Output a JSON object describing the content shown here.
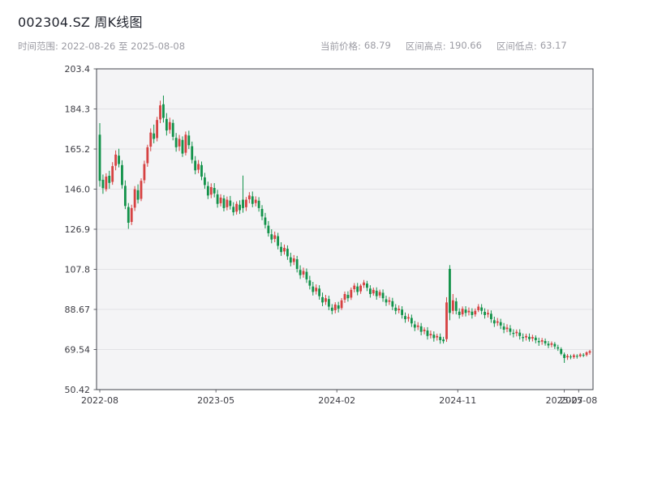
{
  "header": {
    "title": "002304.SZ 周K线图",
    "subtitle": "时间范围: 2022-08-26 至 2025-08-08",
    "stats": [
      {
        "label": "当前价格:",
        "value": "68.79"
      },
      {
        "label": "区间高点:",
        "value": "190.66"
      },
      {
        "label": "区间低点:",
        "value": "63.17"
      }
    ]
  },
  "chart_data": {
    "type": "candlestick",
    "symbol": "002304.SZ",
    "freq": "weekly",
    "start_date": "2022-08-26",
    "end_date": "2025-08-08",
    "current_price": 68.79,
    "range_high": 190.66,
    "range_low": 63.17,
    "ylim": [
      50.42,
      203.4
    ],
    "grid": "horizontal",
    "colors": {
      "up": "#d64242",
      "down": "#12924a",
      "plot_bg": "#f4f4f6",
      "grid": "#e2e2e6",
      "border": "#42454c"
    },
    "yticks": [
      {
        "value": 203.4,
        "label": "203.4"
      },
      {
        "value": 184.2775,
        "label": "184.3"
      },
      {
        "value": 165.155,
        "label": "165.2"
      },
      {
        "value": 146.0325,
        "label": "146.0"
      },
      {
        "value": 126.91,
        "label": "126.9"
      },
      {
        "value": 107.7875,
        "label": "107.8"
      },
      {
        "value": 88.665,
        "label": "88.67"
      },
      {
        "value": 69.5425,
        "label": "69.54"
      },
      {
        "value": 50.42,
        "label": "50.42"
      }
    ],
    "xticks": [
      {
        "week": 0,
        "label": "2022-08"
      },
      {
        "week": 36.5,
        "label": "2023-05"
      },
      {
        "week": 74.5,
        "label": "2024-02"
      },
      {
        "week": 112.5,
        "label": "2024-11"
      },
      {
        "week": 146,
        "label": "2025-07"
      },
      {
        "week": 150.5,
        "label": "2025-08"
      }
    ],
    "candles_format": [
      "open",
      "high",
      "low",
      "close"
    ],
    "candles": [
      [
        172.0,
        177.5,
        147.2,
        150.0
      ],
      [
        150.5,
        153.0,
        143.8,
        146.5
      ],
      [
        146.0,
        153.6,
        144.9,
        152.0
      ],
      [
        152.4,
        154.8,
        146.2,
        149.0
      ],
      [
        149.5,
        158.9,
        148.1,
        157.0
      ],
      [
        157.2,
        164.5,
        155.0,
        162.5
      ],
      [
        162.0,
        165.3,
        156.4,
        158.0
      ],
      [
        157.5,
        159.8,
        146.3,
        148.0
      ],
      [
        147.6,
        150.2,
        136.5,
        138.0
      ],
      [
        137.5,
        139.4,
        127.1,
        130.0
      ],
      [
        130.4,
        138.6,
        128.9,
        137.0
      ],
      [
        137.2,
        147.5,
        135.6,
        146.0
      ],
      [
        145.5,
        148.3,
        139.2,
        141.0
      ],
      [
        141.4,
        151.2,
        140.3,
        150.0
      ],
      [
        150.3,
        159.6,
        148.8,
        158.0
      ],
      [
        158.4,
        167.2,
        156.7,
        166.0
      ],
      [
        166.3,
        175.0,
        164.1,
        173.0
      ],
      [
        172.6,
        176.8,
        167.9,
        170.0
      ],
      [
        170.4,
        180.5,
        168.8,
        179.0
      ],
      [
        179.3,
        188.2,
        177.5,
        186.0
      ],
      [
        186.5,
        190.66,
        177.8,
        180.0
      ],
      [
        179.5,
        182.3,
        171.6,
        174.0
      ],
      [
        174.3,
        180.1,
        172.5,
        178.0
      ],
      [
        177.6,
        179.2,
        169.3,
        171.0
      ],
      [
        170.5,
        172.8,
        163.9,
        166.0
      ],
      [
        166.4,
        171.9,
        164.2,
        170.0
      ],
      [
        169.5,
        171.2,
        161.4,
        163.0
      ],
      [
        163.4,
        173.5,
        162.1,
        172.0
      ],
      [
        171.6,
        173.9,
        165.2,
        167.0
      ],
      [
        166.5,
        168.7,
        158.3,
        160.0
      ],
      [
        159.6,
        161.8,
        153.1,
        155.0
      ],
      [
        155.3,
        159.9,
        153.6,
        158.0
      ],
      [
        157.5,
        159.2,
        150.3,
        152.0
      ],
      [
        151.6,
        153.8,
        146.2,
        148.0
      ],
      [
        147.5,
        149.6,
        141.3,
        143.0
      ],
      [
        143.4,
        148.8,
        141.7,
        147.0
      ],
      [
        146.6,
        148.9,
        142.1,
        144.0
      ],
      [
        143.5,
        145.7,
        137.2,
        139.0
      ],
      [
        139.3,
        143.6,
        137.8,
        142.0
      ],
      [
        141.6,
        143.2,
        135.4,
        137.0
      ],
      [
        137.4,
        142.5,
        135.9,
        141.0
      ],
      [
        140.6,
        142.8,
        136.3,
        138.0
      ],
      [
        137.6,
        139.8,
        133.4,
        135.0
      ],
      [
        135.3,
        140.2,
        133.9,
        139.0
      ],
      [
        138.6,
        140.7,
        134.2,
        136.0
      ],
      [
        141.0,
        152.5,
        134.8,
        137.0
      ],
      [
        137.4,
        142.3,
        135.6,
        141.0
      ],
      [
        141.2,
        144.6,
        139.3,
        143.0
      ],
      [
        142.6,
        144.9,
        137.4,
        139.0
      ],
      [
        139.4,
        142.6,
        137.8,
        141.0
      ],
      [
        140.5,
        142.2,
        135.3,
        137.0
      ],
      [
        136.6,
        138.4,
        131.2,
        133.0
      ],
      [
        132.5,
        134.7,
        127.3,
        129.0
      ],
      [
        128.6,
        130.8,
        123.4,
        125.0
      ],
      [
        124.5,
        126.9,
        120.2,
        122.0
      ],
      [
        122.3,
        125.8,
        120.7,
        124.0
      ],
      [
        123.6,
        125.2,
        117.3,
        119.0
      ],
      [
        118.5,
        120.7,
        114.2,
        116.0
      ],
      [
        116.3,
        119.6,
        114.8,
        118.0
      ],
      [
        117.6,
        119.2,
        112.3,
        114.0
      ],
      [
        113.5,
        115.7,
        109.2,
        111.0
      ],
      [
        111.3,
        114.6,
        109.8,
        113.0
      ],
      [
        112.6,
        114.2,
        106.3,
        108.0
      ],
      [
        107.5,
        109.7,
        103.2,
        105.0
      ],
      [
        105.3,
        108.6,
        103.8,
        107.0
      ],
      [
        106.6,
        108.2,
        101.3,
        103.0
      ],
      [
        102.5,
        104.7,
        98.2,
        100.0
      ],
      [
        99.6,
        101.8,
        95.3,
        97.0
      ],
      [
        97.3,
        100.6,
        95.8,
        99.0
      ],
      [
        98.6,
        100.2,
        93.3,
        95.0
      ],
      [
        94.5,
        96.7,
        90.2,
        92.0
      ],
      [
        92.3,
        95.6,
        90.8,
        94.0
      ],
      [
        93.6,
        95.2,
        88.3,
        90.0
      ],
      [
        89.5,
        91.2,
        86.3,
        88.0
      ],
      [
        88.3,
        92.1,
        86.8,
        91.0
      ],
      [
        90.6,
        92.3,
        87.2,
        89.0
      ],
      [
        89.3,
        94.1,
        88.4,
        93.0
      ],
      [
        93.3,
        97.2,
        91.8,
        96.0
      ],
      [
        95.6,
        97.3,
        92.4,
        94.0
      ],
      [
        94.3,
        99.1,
        93.2,
        98.0
      ],
      [
        98.3,
        101.2,
        96.8,
        100.0
      ],
      [
        99.6,
        101.3,
        95.4,
        97.0
      ],
      [
        97.3,
        100.8,
        96.1,
        100.0
      ],
      [
        100.2,
        102.7,
        98.9,
        101.5
      ],
      [
        101.0,
        102.3,
        97.4,
        99.0
      ],
      [
        98.6,
        100.2,
        94.3,
        96.0
      ],
      [
        96.3,
        99.1,
        95.2,
        98.0
      ],
      [
        97.6,
        99.2,
        93.3,
        95.0
      ],
      [
        95.3,
        98.1,
        94.2,
        97.0
      ],
      [
        96.6,
        98.2,
        92.3,
        94.0
      ],
      [
        93.5,
        95.2,
        90.3,
        92.0
      ],
      [
        92.3,
        94.6,
        90.8,
        93.0
      ],
      [
        92.6,
        94.2,
        88.3,
        90.0
      ],
      [
        89.5,
        91.2,
        86.3,
        88.0
      ],
      [
        88.3,
        90.6,
        86.8,
        89.0
      ],
      [
        88.6,
        90.2,
        84.3,
        86.0
      ],
      [
        85.5,
        87.2,
        82.3,
        84.0
      ],
      [
        84.3,
        86.6,
        82.8,
        85.0
      ],
      [
        84.6,
        86.2,
        80.3,
        82.0
      ],
      [
        81.5,
        83.2,
        78.3,
        80.0
      ],
      [
        80.3,
        82.6,
        78.8,
        81.0
      ],
      [
        80.6,
        82.2,
        76.3,
        78.0
      ],
      [
        78.3,
        80.1,
        76.8,
        79.0
      ],
      [
        78.6,
        80.2,
        74.3,
        76.0
      ],
      [
        76.3,
        78.6,
        74.8,
        77.0
      ],
      [
        76.6,
        78.2,
        73.3,
        75.0
      ],
      [
        75.3,
        77.1,
        73.8,
        76.0
      ],
      [
        75.6,
        77.2,
        72.3,
        74.0
      ],
      [
        74.3,
        75.6,
        72.4,
        73.5
      ],
      [
        74.5,
        94.5,
        73.2,
        92.0
      ],
      [
        108.0,
        109.8,
        83.5,
        87.0
      ],
      [
        88.0,
        96.0,
        86.4,
        93.0
      ],
      [
        92.5,
        94.2,
        86.3,
        88.0
      ],
      [
        87.6,
        89.2,
        84.3,
        86.0
      ],
      [
        86.3,
        90.1,
        85.2,
        89.0
      ],
      [
        88.6,
        90.2,
        85.3,
        87.0
      ],
      [
        87.3,
        89.6,
        85.8,
        88.0
      ],
      [
        87.6,
        89.2,
        84.3,
        86.0
      ],
      [
        86.3,
        89.1,
        85.2,
        88.0
      ],
      [
        88.3,
        91.2,
        87.4,
        90.0
      ],
      [
        89.6,
        91.2,
        86.3,
        88.0
      ],
      [
        87.5,
        89.2,
        84.3,
        86.0
      ],
      [
        86.3,
        88.6,
        84.8,
        87.0
      ],
      [
        86.6,
        88.2,
        82.3,
        84.0
      ],
      [
        83.5,
        85.2,
        80.3,
        82.0
      ],
      [
        82.3,
        84.6,
        80.8,
        83.0
      ],
      [
        82.6,
        84.2,
        79.3,
        81.0
      ],
      [
        80.5,
        82.2,
        77.3,
        79.0
      ],
      [
        79.3,
        81.6,
        77.8,
        80.0
      ],
      [
        79.6,
        81.2,
        76.3,
        78.0
      ],
      [
        77.5,
        79.2,
        75.3,
        77.0
      ],
      [
        77.3,
        79.1,
        75.8,
        78.0
      ],
      [
        77.6,
        79.2,
        74.3,
        76.0
      ],
      [
        75.5,
        77.2,
        73.3,
        75.0
      ],
      [
        75.3,
        77.1,
        73.8,
        76.0
      ],
      [
        75.6,
        77.2,
        73.3,
        74.5
      ],
      [
        74.8,
        76.6,
        73.4,
        75.5
      ],
      [
        75.2,
        76.3,
        72.5,
        74.0
      ],
      [
        73.6,
        75.2,
        71.3,
        73.0
      ],
      [
        73.3,
        75.1,
        71.8,
        74.0
      ],
      [
        73.6,
        74.8,
        71.4,
        72.5
      ],
      [
        72.3,
        73.6,
        70.2,
        71.5
      ],
      [
        71.8,
        73.4,
        70.6,
        72.5
      ],
      [
        72.2,
        73.1,
        69.8,
        71.0
      ],
      [
        70.6,
        71.8,
        68.9,
        70.0
      ],
      [
        69.8,
        70.6,
        66.8,
        67.5
      ],
      [
        67.2,
        68.1,
        63.17,
        65.5
      ],
      [
        65.8,
        67.4,
        64.6,
        66.5
      ],
      [
        66.2,
        67.1,
        64.9,
        65.8
      ],
      [
        65.9,
        67.5,
        65.1,
        66.8
      ],
      [
        66.5,
        67.3,
        65.2,
        66.2
      ],
      [
        66.4,
        67.9,
        65.8,
        67.2
      ],
      [
        67.0,
        67.8,
        65.9,
        66.8
      ],
      [
        66.9,
        68.7,
        66.2,
        68.2
      ],
      [
        68.0,
        69.3,
        67.1,
        68.79
      ]
    ]
  }
}
